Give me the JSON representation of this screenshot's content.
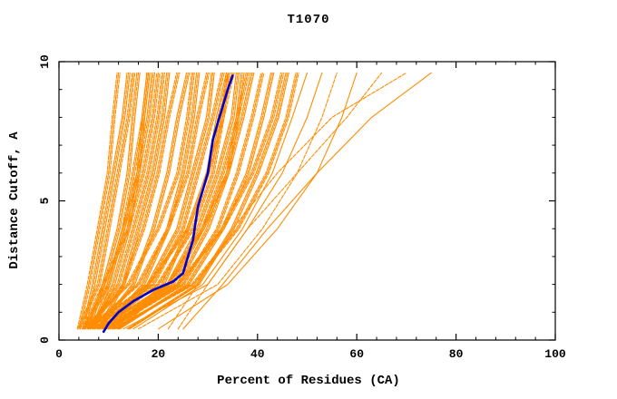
{
  "chart_data": {
    "type": "line",
    "title": "T1070",
    "xlabel": "Percent of Residues (CA)",
    "ylabel": "Distance Cutoff, A",
    "xlim": [
      0,
      100
    ],
    "ylim": [
      0,
      10
    ],
    "x_major_ticks": [
      0,
      20,
      40,
      60,
      80,
      100
    ],
    "x_minor_step": 4,
    "y_major_ticks": [
      0,
      5,
      10
    ],
    "y_minor_step": 1,
    "grid": "off",
    "legend": "none",
    "colors": {
      "ensemble": "#ff8c00",
      "median": "#0000cd",
      "axis": "#000000",
      "background": "#ffffff"
    },
    "ensemble_y_levels": [
      0.4,
      2,
      4,
      6,
      8,
      9.6
    ],
    "ensemble_series_note": "each array = percent-of-residues (x) sampled at ensemble_y_levels (distance cutoff, A); ~100 model curves approximated",
    "ensemble_series": [
      [
        4,
        6,
        8,
        10,
        11,
        12
      ],
      [
        5,
        7,
        9,
        11,
        13,
        14
      ],
      [
        4,
        8,
        10,
        12,
        14,
        15
      ],
      [
        6,
        9,
        12,
        14,
        15,
        16
      ],
      [
        5,
        10,
        13,
        15,
        17,
        18
      ],
      [
        7,
        11,
        14,
        16,
        18,
        19
      ],
      [
        6,
        12,
        15,
        18,
        20,
        21
      ],
      [
        8,
        13,
        16,
        19,
        21,
        22
      ],
      [
        5,
        9,
        14,
        17,
        19,
        20
      ],
      [
        7,
        10,
        13,
        16,
        17,
        18
      ],
      [
        6,
        13,
        17,
        20,
        22,
        24
      ],
      [
        8,
        15,
        19,
        22,
        24,
        26
      ],
      [
        5,
        14,
        20,
        24,
        26,
        27
      ],
      [
        9,
        17,
        22,
        25,
        27,
        28
      ],
      [
        6,
        16,
        22,
        26,
        28,
        30
      ],
      [
        10,
        18,
        24,
        27,
        30,
        31
      ],
      [
        7,
        19,
        25,
        28,
        31,
        33
      ],
      [
        11,
        21,
        26,
        30,
        32,
        34
      ],
      [
        8,
        20,
        27,
        31,
        33,
        35
      ],
      [
        12,
        22,
        28,
        32,
        35,
        36
      ],
      [
        9,
        23,
        29,
        33,
        36,
        38
      ],
      [
        10,
        24,
        30,
        34,
        37,
        39
      ],
      [
        6,
        18,
        26,
        30,
        33,
        34
      ],
      [
        8,
        22,
        29,
        34,
        36,
        37
      ],
      [
        10,
        25,
        32,
        36,
        39,
        41
      ],
      [
        12,
        26,
        33,
        38,
        41,
        43
      ],
      [
        9,
        24,
        33,
        39,
        43,
        45
      ],
      [
        14,
        28,
        35,
        40,
        44,
        46
      ],
      [
        11,
        27,
        36,
        42,
        46,
        48
      ],
      [
        13,
        30,
        38,
        45,
        50,
        53
      ],
      [
        16,
        32,
        41,
        48,
        53,
        56
      ],
      [
        20,
        34,
        44,
        52,
        57,
        60
      ],
      [
        24,
        30,
        38,
        48,
        58,
        65
      ],
      [
        25,
        33,
        42,
        52,
        63,
        75
      ],
      [
        22,
        28,
        35,
        44,
        55,
        70
      ],
      [
        15,
        29,
        37,
        43,
        47,
        50
      ]
    ],
    "median_series": {
      "name": "median-model",
      "points": [
        [
          9,
          0.3
        ],
        [
          10,
          0.6
        ],
        [
          12,
          1.0
        ],
        [
          15,
          1.4
        ],
        [
          19,
          1.8
        ],
        [
          23,
          2.1
        ],
        [
          25,
          2.4
        ],
        [
          26,
          3.0
        ],
        [
          27,
          3.6
        ],
        [
          27.5,
          4.2
        ],
        [
          28,
          4.8
        ],
        [
          29,
          5.4
        ],
        [
          30,
          6.0
        ],
        [
          30.5,
          6.6
        ],
        [
          31,
          7.2
        ],
        [
          32,
          7.8
        ],
        [
          33,
          8.4
        ],
        [
          34,
          9.0
        ],
        [
          35,
          9.5
        ]
      ]
    }
  }
}
